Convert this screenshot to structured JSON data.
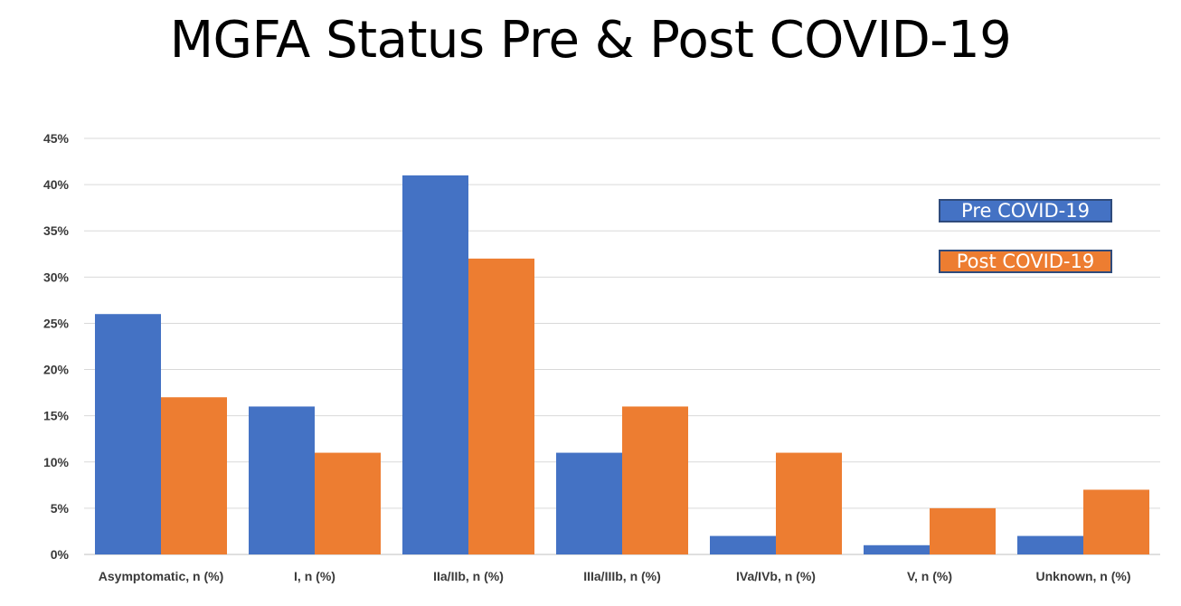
{
  "chart_data": {
    "type": "bar",
    "title": "MGFA Status Pre & Post COVID-19",
    "categories": [
      "Asymptomatic, n (%)",
      "I, n (%)",
      "IIa/IIb, n (%)",
      "IIIa/IIIb, n (%)",
      "IVa/IVb, n (%)",
      "V, n (%)",
      "Unknown, n (%)"
    ],
    "series": [
      {
        "name": "Pre COVID-19",
        "color": "#4472c4",
        "values": [
          26,
          16,
          41,
          11,
          2,
          1,
          2
        ]
      },
      {
        "name": "Post COVID-19",
        "color": "#ed7d31",
        "values": [
          17,
          11,
          32,
          16,
          11,
          5,
          7
        ]
      }
    ],
    "ylim": [
      0,
      45
    ],
    "yticks": [
      "0%",
      "5%",
      "10%",
      "15%",
      "20%",
      "25%",
      "30%",
      "35%",
      "40%",
      "45%"
    ],
    "grid": true,
    "legend": "top-right"
  }
}
